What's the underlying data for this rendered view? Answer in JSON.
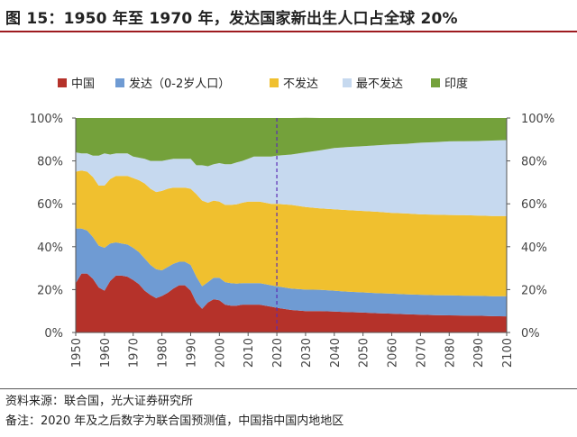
{
  "header": {
    "title": "图 15：1950 年至 1970 年，发达国家新出生人口占全球 20%"
  },
  "footer": {
    "source": "资料来源：联合国，光大证券研究所",
    "remark": "备注：2020 年及之后数字为联合国预测值，中国指中国内地地区"
  },
  "chart_data": {
    "type": "area",
    "stacked": true,
    "x": [
      1950,
      1952,
      1954,
      1956,
      1958,
      1960,
      1962,
      1964,
      1966,
      1968,
      1970,
      1972,
      1974,
      1976,
      1978,
      1980,
      1982,
      1984,
      1986,
      1988,
      1990,
      1992,
      1994,
      1996,
      1998,
      2000,
      2002,
      2004,
      2006,
      2008,
      2010,
      2012,
      2014,
      2016,
      2018,
      2020,
      2025,
      2030,
      2035,
      2040,
      2045,
      2050,
      2055,
      2060,
      2065,
      2070,
      2075,
      2080,
      2085,
      2090,
      2095,
      2100
    ],
    "series": [
      {
        "name": "中国",
        "color": "#b5322a",
        "values": [
          23,
          27.5,
          27.5,
          25,
          21,
          19.5,
          24,
          26.5,
          26.5,
          26,
          24.5,
          22.5,
          19.5,
          17.5,
          16,
          17,
          18.5,
          20.5,
          22,
          22,
          19.5,
          14,
          11,
          14,
          15.5,
          15,
          13,
          12.5,
          12.5,
          13,
          13,
          13,
          13,
          12.5,
          12,
          11.5,
          10.5,
          10,
          10,
          9.8,
          9.5,
          9.3,
          9,
          8.8,
          8.5,
          8.3,
          8.1,
          8,
          7.9,
          7.8,
          7.6,
          7.5
        ]
      },
      {
        "name": "发达（0-2岁人口）",
        "color": "#6f9bd3",
        "values": [
          25.5,
          21,
          20,
          19.5,
          19.5,
          20,
          17.5,
          15.5,
          15,
          15,
          15,
          15,
          15,
          14,
          13.5,
          12,
          12,
          11.5,
          11,
          11,
          12,
          12,
          10.5,
          9.5,
          10,
          10.5,
          10.5,
          10.5,
          10.3,
          10,
          10,
          10,
          10,
          10,
          10,
          10,
          10,
          10,
          9.9,
          9.7,
          9.5,
          9.4,
          9.3,
          9.3,
          9.3,
          9.3,
          9.3,
          9.3,
          9.3,
          9.3,
          9.3,
          9.4
        ]
      },
      {
        "name": "不发达",
        "color": "#f0c02f",
        "values": [
          26.5,
          27,
          27.5,
          28,
          28,
          29,
          30,
          31,
          31.5,
          32,
          32.5,
          33.5,
          35,
          35.5,
          36,
          37,
          36.5,
          35.5,
          34.5,
          34.5,
          35.5,
          38.5,
          40,
          37,
          36,
          35.5,
          36,
          36.5,
          37,
          37.5,
          38,
          38,
          38,
          38,
          38,
          38.5,
          39,
          38.5,
          38,
          38,
          38,
          38,
          38,
          37.7,
          37.7,
          37.5,
          37.5,
          37.5,
          37.5,
          37.4,
          37.4,
          37.4
        ]
      },
      {
        "name": "最不发达",
        "color": "#c6d9ef",
        "values": [
          9,
          8,
          8.5,
          10,
          14,
          15,
          11.5,
          10.5,
          10.5,
          10.5,
          10,
          10.5,
          11.5,
          13,
          14.5,
          14,
          13.5,
          13.5,
          13.5,
          13.5,
          14,
          13.5,
          16.5,
          17,
          17,
          18,
          19,
          19,
          19.5,
          19.5,
          20,
          21,
          21,
          21.5,
          22,
          22.5,
          23.5,
          25.5,
          27,
          28.5,
          29.5,
          30.2,
          31,
          31.9,
          32.5,
          33.4,
          33.9,
          34.3,
          34.5,
          34.8,
          35.2,
          35.4
        ]
      },
      {
        "name": "印度",
        "color": "#74a13b",
        "values": [
          16,
          16.5,
          16.5,
          17.5,
          17.5,
          16.5,
          17,
          16.5,
          16.5,
          16.5,
          18,
          18.5,
          19,
          20,
          20,
          20,
          19.5,
          19,
          19,
          19,
          19,
          22,
          22,
          22.5,
          21.5,
          21,
          21.5,
          21.5,
          20.7,
          20,
          19,
          18,
          18,
          18,
          18,
          17.5,
          17,
          16.1,
          15.1,
          14,
          13.5,
          13.1,
          12.7,
          12.3,
          12,
          11.5,
          11.2,
          10.9,
          10.8,
          10.7,
          10.5,
          10.3
        ]
      }
    ],
    "y_ticks": [
      "0%",
      "20%",
      "40%",
      "60%",
      "80%",
      "100%"
    ],
    "x_ticks": [
      1950,
      1960,
      1970,
      1980,
      1990,
      2000,
      2010,
      2020,
      2030,
      2040,
      2050,
      2060,
      2070,
      2080,
      2090,
      2100
    ],
    "ylim": [
      0,
      100
    ],
    "xlim": [
      1950,
      2100
    ],
    "marker_line": {
      "x": 2020,
      "style": "dashed",
      "color": "#5b2bb5"
    },
    "legend_position": "top",
    "grid": false
  }
}
